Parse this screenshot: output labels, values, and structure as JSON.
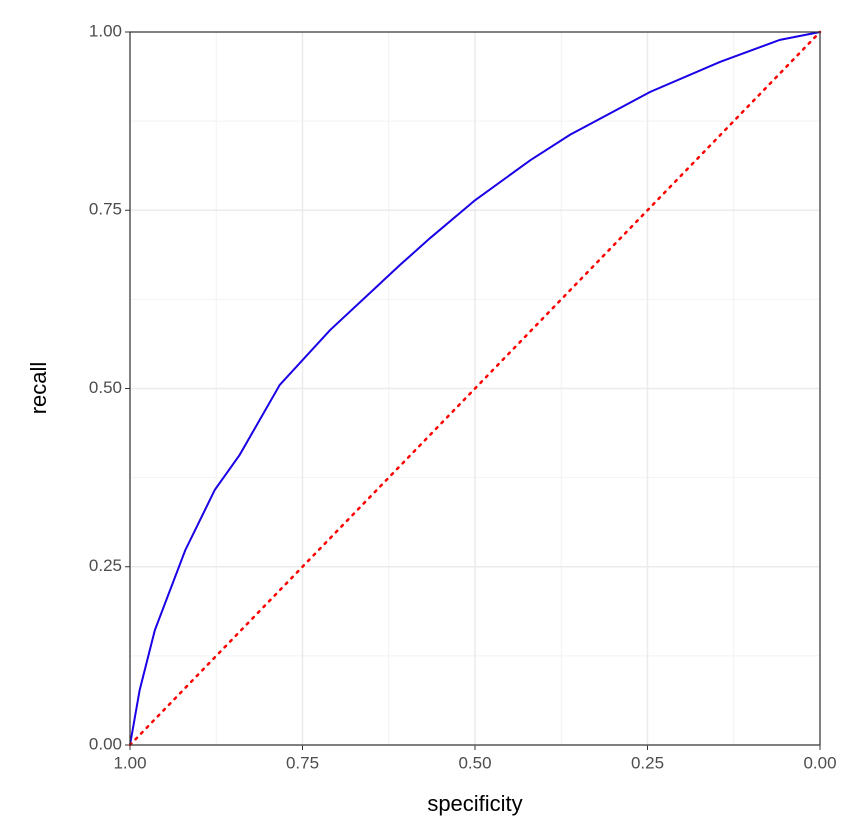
{
  "chart_data": {
    "type": "line",
    "x_label": "specificity",
    "y_label": "recall",
    "xlim": [
      1,
      0
    ],
    "ylim": [
      0,
      1
    ],
    "xticks": [
      {
        "value": 1,
        "label": "1.00"
      },
      {
        "value": 0.75,
        "label": "0.75"
      },
      {
        "value": 0.5,
        "label": "0.50"
      },
      {
        "value": 0.25,
        "label": "0.25"
      },
      {
        "value": 0,
        "label": "0.00"
      }
    ],
    "yticks": [
      {
        "value": 0,
        "label": "0.00"
      },
      {
        "value": 0.25,
        "label": "0.25"
      },
      {
        "value": 0.5,
        "label": "0.50"
      },
      {
        "value": 0.75,
        "label": "0.75"
      },
      {
        "value": 1,
        "label": "1.00"
      }
    ],
    "xminor": [
      0.875,
      0.625,
      0.375,
      0.125
    ],
    "yminor": [
      0.125,
      0.375,
      0.625,
      0.875
    ],
    "grid": true,
    "series": [
      {
        "color": "#1a00e6",
        "linestyle": "solid",
        "x": [
          1,
          0.986,
          0.964,
          0.92,
          0.877,
          0.841,
          0.783,
          0.71,
          0.609,
          0.565,
          0.5,
          0.42,
          0.362,
          0.246,
          0.145,
          0.058,
          0
        ],
        "values": [
          0,
          0.077,
          0.161,
          0.273,
          0.358,
          0.407,
          0.505,
          0.582,
          0.673,
          0.711,
          0.764,
          0.82,
          0.856,
          0.916,
          0.958,
          0.989,
          1
        ]
      },
      {
        "color": "#ff0000",
        "linestyle": "dotted",
        "x": [
          1,
          0
        ],
        "values": [
          0,
          1
        ]
      }
    ]
  }
}
